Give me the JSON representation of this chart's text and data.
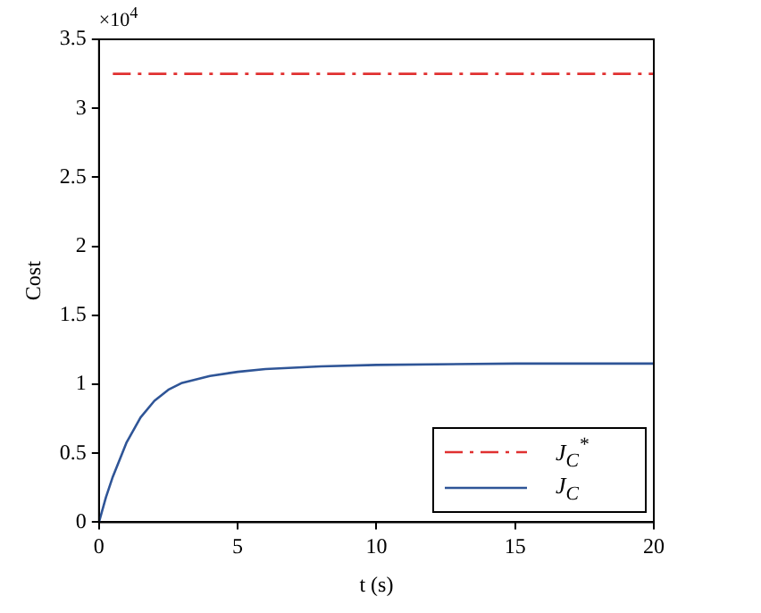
{
  "chart_data": {
    "type": "line",
    "xlabel": "t (s)",
    "ylabel": "Cost",
    "annotations": [
      "×10$^{4}$"
    ],
    "xlim": [
      0,
      20
    ],
    "xticks": [
      0,
      5,
      10,
      15,
      20
    ],
    "ylim": [
      0,
      3.5
    ],
    "yticks": [
      0,
      0.5,
      1,
      1.5,
      2,
      2.5,
      3,
      3.5
    ],
    "grid": false,
    "legend": "bottom right",
    "marker": "none",
    "series": [
      {
        "name": "J$_{C}$$^{*}$",
        "color": "#e03030",
        "line_style": "dashed",
        "x": [
          0.5,
          20
        ],
        "values": [
          3.25,
          3.25
        ]
      },
      {
        "name": "J$_{C}$",
        "color": "#2f5597",
        "line_style": "solid",
        "x": [
          0,
          0.25,
          0.5,
          1,
          1.5,
          2,
          2.5,
          3,
          4,
          5,
          6,
          8,
          10,
          15,
          20
        ],
        "values": [
          0,
          0.18,
          0.33,
          0.58,
          0.76,
          0.88,
          0.96,
          1.01,
          1.06,
          1.09,
          1.11,
          1.13,
          1.14,
          1.15,
          1.15
        ]
      }
    ]
  }
}
